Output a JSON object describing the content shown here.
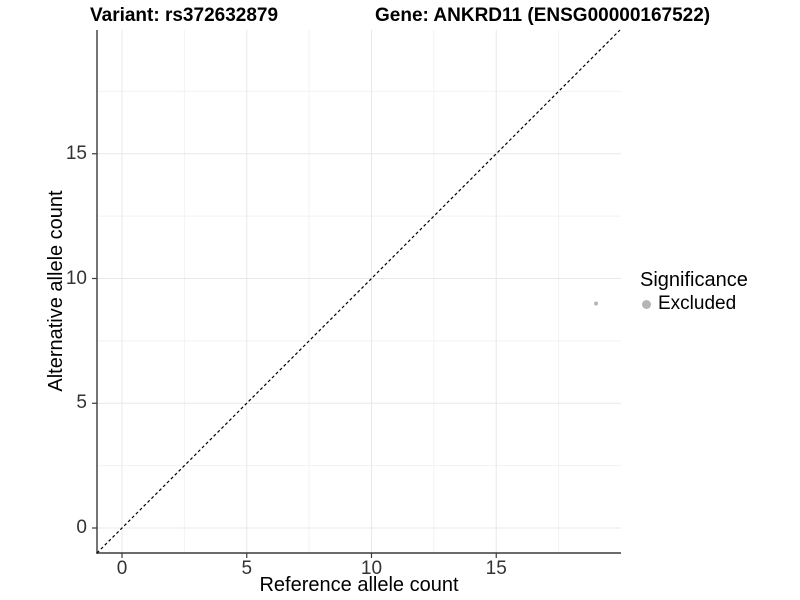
{
  "chart_data": {
    "type": "scatter",
    "titles": {
      "left": "Variant: rs372632879",
      "right": "Gene: ANKRD11 (ENSG00000167522)"
    },
    "xlabel": "Reference allele count",
    "ylabel": "Alternative allele count",
    "x_tick_labels": [
      "0",
      "5",
      "10",
      "15"
    ],
    "y_tick_labels": [
      "0",
      "5",
      "10",
      "15"
    ],
    "x_tick_values": [
      0,
      5,
      10,
      15
    ],
    "y_tick_values": [
      0,
      5,
      10,
      15
    ],
    "x_minor_values": [
      2.5,
      7.5,
      12.5,
      17.5
    ],
    "y_minor_values": [
      2.5,
      7.5,
      12.5,
      17.5
    ],
    "xlim": [
      -1,
      20
    ],
    "ylim": [
      -1,
      19.96
    ],
    "grid": "major+minor",
    "points": [
      {
        "x": 19,
        "y": 9,
        "series": "Excluded"
      }
    ],
    "reference_line": {
      "kind": "identity",
      "slope": 1,
      "intercept": 0,
      "style": "dashed",
      "color": "#000000"
    },
    "legend": {
      "position": "right",
      "title": "Significance",
      "items": [
        {
          "label": "Excluded",
          "color": "#b5b5b5",
          "shape": "circle"
        }
      ]
    },
    "colors": {
      "point": "#b5b5b5",
      "grid_major": "#e8e8e8",
      "grid_minor": "#f2f2f2",
      "axis": "#3a3a3a",
      "tick": "#333333",
      "background": "#ffffff"
    }
  }
}
